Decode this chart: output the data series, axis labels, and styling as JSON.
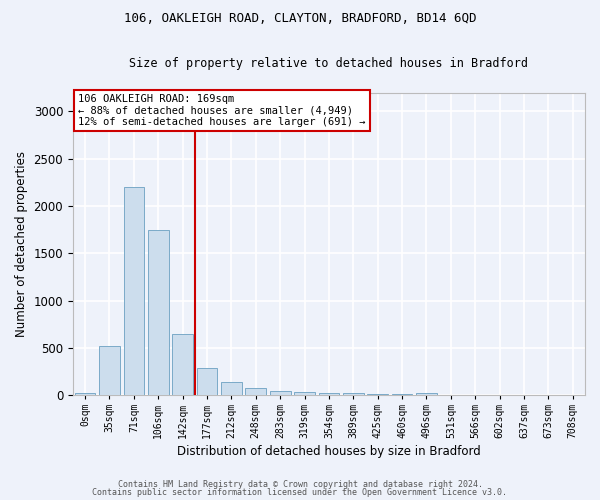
{
  "title1": "106, OAKLEIGH ROAD, CLAYTON, BRADFORD, BD14 6QD",
  "title2": "Size of property relative to detached houses in Bradford",
  "xlabel": "Distribution of detached houses by size in Bradford",
  "ylabel": "Number of detached properties",
  "bins": [
    "0sqm",
    "35sqm",
    "71sqm",
    "106sqm",
    "142sqm",
    "177sqm",
    "212sqm",
    "248sqm",
    "283sqm",
    "319sqm",
    "354sqm",
    "389sqm",
    "425sqm",
    "460sqm",
    "496sqm",
    "531sqm",
    "566sqm",
    "602sqm",
    "637sqm",
    "673sqm",
    "708sqm"
  ],
  "values": [
    30,
    520,
    2200,
    1750,
    650,
    290,
    145,
    75,
    50,
    40,
    25,
    20,
    15,
    15,
    25,
    5,
    5,
    5,
    5,
    5,
    5
  ],
  "bar_color": "#ccdded",
  "bar_edge_color": "#7aaac8",
  "vline_color": "#cc0000",
  "annotation_line1": "106 OAKLEIGH ROAD: 169sqm",
  "annotation_line2": "← 88% of detached houses are smaller (4,949)",
  "annotation_line3": "12% of semi-detached houses are larger (691) →",
  "annotation_box_facecolor": "#ffffff",
  "annotation_box_edgecolor": "#cc0000",
  "footer1": "Contains HM Land Registry data © Crown copyright and database right 2024.",
  "footer2": "Contains public sector information licensed under the Open Government Licence v3.0.",
  "ylim": [
    0,
    3200
  ],
  "yticks": [
    0,
    500,
    1000,
    1500,
    2000,
    2500,
    3000
  ],
  "background_color": "#eef2fa",
  "grid_color": "#ffffff",
  "vline_index": 4.5
}
